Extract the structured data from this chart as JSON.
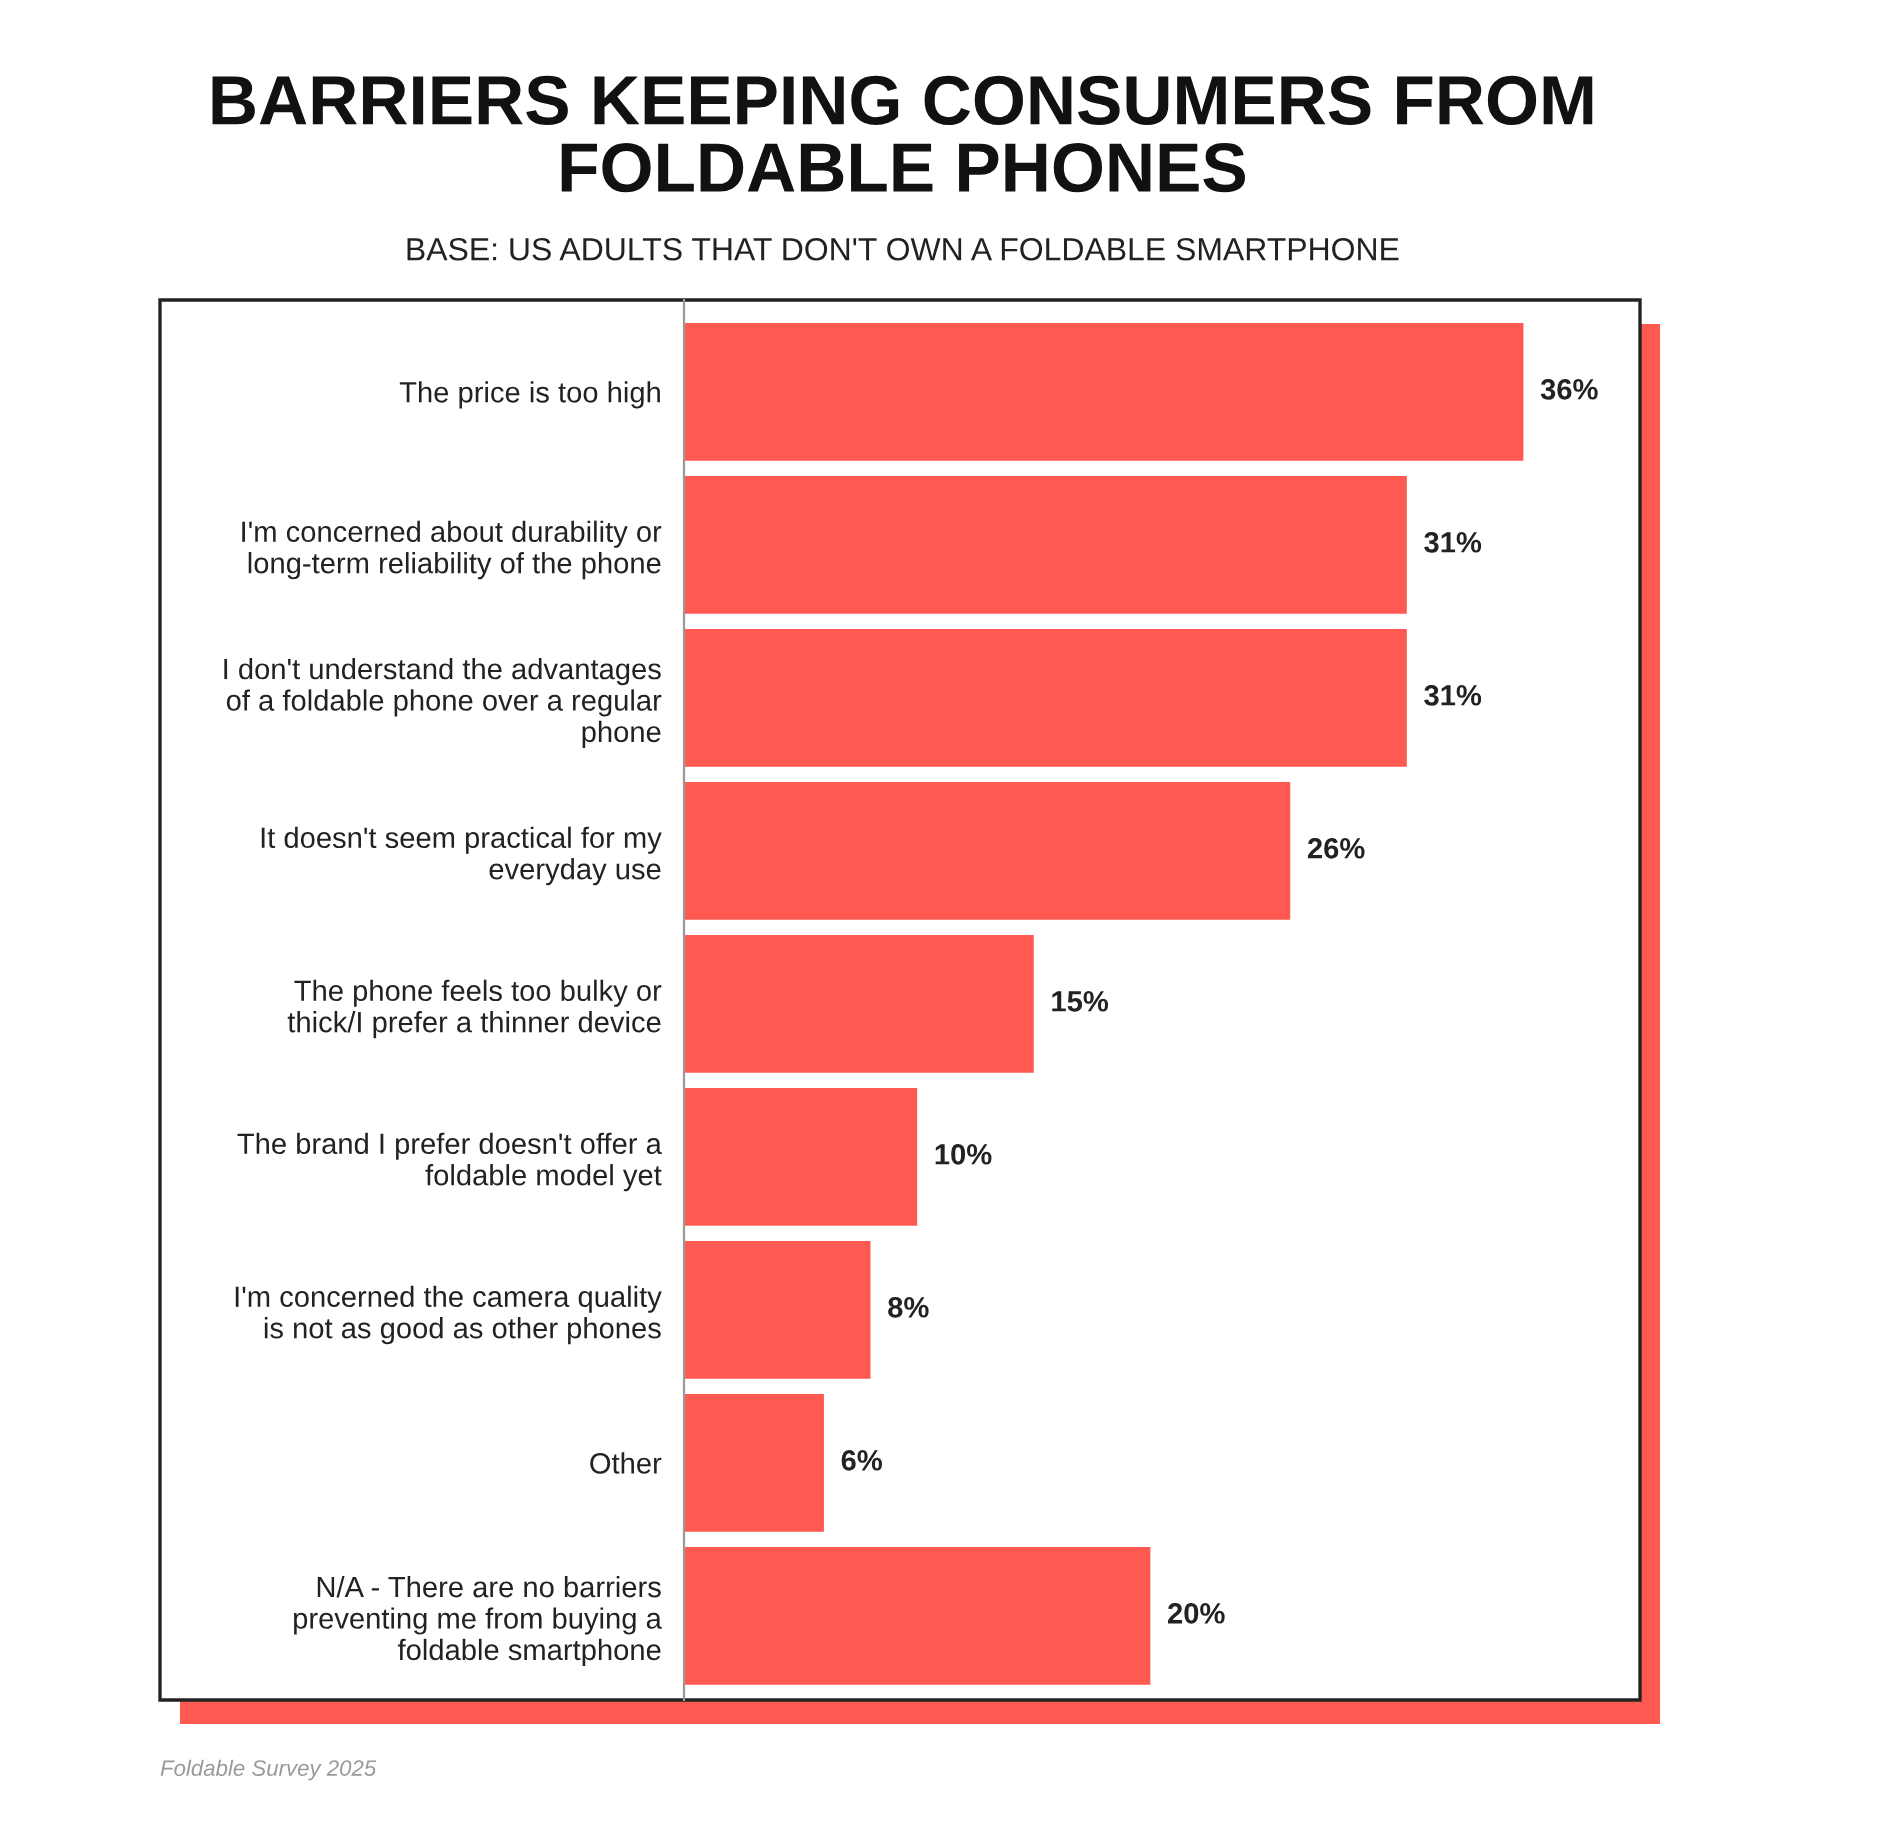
{
  "chart_data": {
    "type": "bar",
    "orientation": "horizontal",
    "title": "BARRIERS KEEPING CONSUMERS FROM\nFOLDABLE PHONES",
    "subtitle": "BASE: US ADULTS THAT DON'T OWN A FOLDABLE SMARTPHONE",
    "categories": [
      "The price is too high",
      "I'm concerned about durability or\nlong-term reliability of the phone",
      "I don't understand the advantages\nof a foldable phone over a regular\nphone",
      "It doesn't seem practical for my\neveryday use",
      "The phone feels too bulky or\nthick/I prefer a thinner device",
      "The brand I prefer doesn't offer a\nfoldable model yet",
      "I'm concerned the camera quality\nis not as good as other phones",
      "Other",
      "N/A - There are no barriers\npreventing me from buying a\nfoldable smartphone"
    ],
    "values": [
      36,
      31,
      31,
      26,
      15,
      10,
      8,
      6,
      20
    ],
    "value_labels": [
      "36%",
      "31%",
      "31%",
      "26%",
      "15%",
      "10%",
      "8%",
      "6%",
      "20%"
    ],
    "color": "#ff5a52",
    "xlim": [
      0,
      41
    ],
    "tick_labels": "y",
    "grid": false,
    "legend": false,
    "annotations": [
      "Foldable Survey 2025"
    ]
  }
}
